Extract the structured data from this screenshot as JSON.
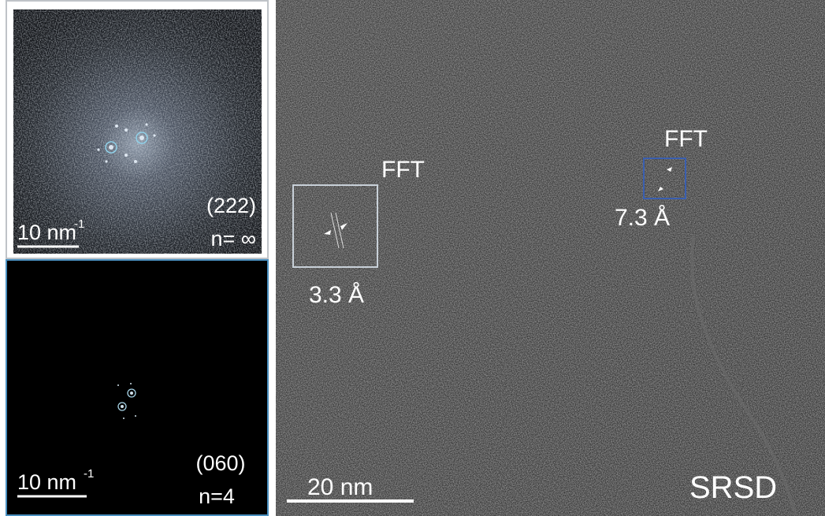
{
  "panels": {
    "top_fft": {
      "scale_bar": {
        "text": "10 nm",
        "sup": "-1"
      },
      "plane": "(222)",
      "n": "n= ∞"
    },
    "bottom_fft": {
      "scale_bar": {
        "text": "10 nm",
        "sup": "-1"
      },
      "plane": "(060)",
      "n": "n=4"
    }
  },
  "main": {
    "insets": [
      {
        "label": "FFT",
        "spacing": "3.3 Å"
      },
      {
        "label": "FFT",
        "spacing": "7.3 Å"
      }
    ],
    "scale_bar": "20 nm",
    "sample": "SRSD"
  }
}
